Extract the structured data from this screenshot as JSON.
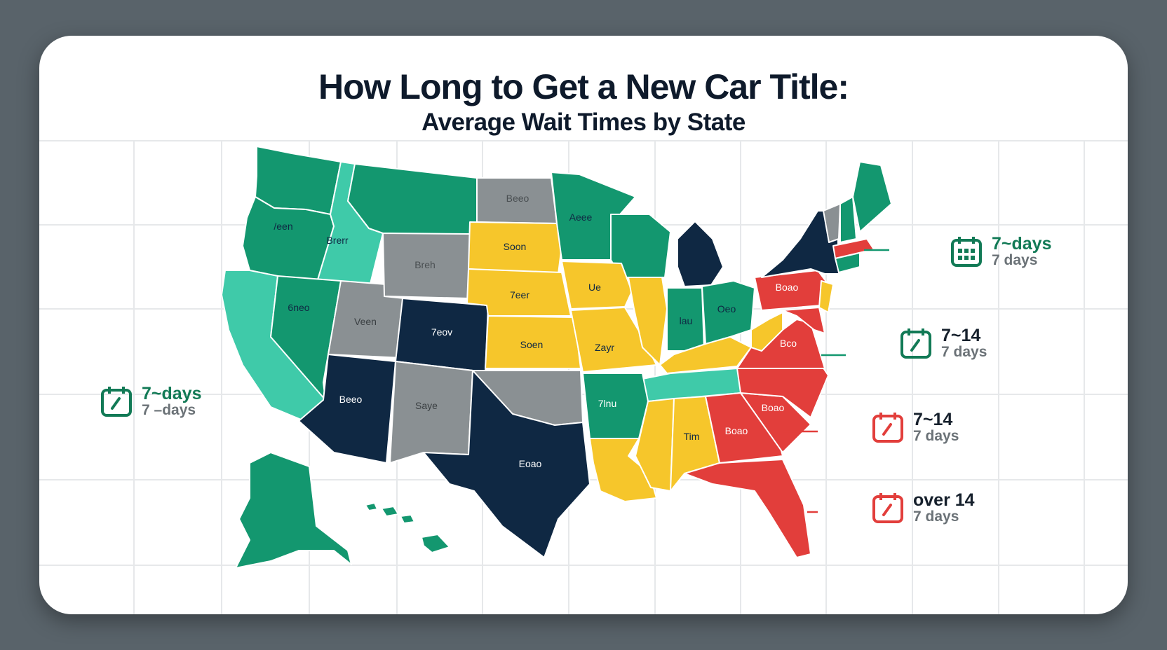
{
  "title": "How Long to Get a New Car Title:",
  "subtitle": "Average Wait Times by State",
  "colors": {
    "green": "#13976f",
    "teal": "#3fcaa9",
    "gray": "#8a9093",
    "yellow": "#f6c62b",
    "navy": "#0f2843",
    "red": "#e23e3b",
    "background": "#59636a"
  },
  "state_labels": {
    "wa_or": "/een",
    "id": "Brerr",
    "mt_nd": "Beeo",
    "mn": "Aeee",
    "nv": "6neo",
    "wy": "Breh",
    "sd": "Soon",
    "ne": "7eer",
    "ia": "Ue",
    "ut": "Veen",
    "co": "7eov",
    "ks": "Soen",
    "mo": "Zayr",
    "in": "lau",
    "oh": "Oeo",
    "pa": "Boao",
    "va": "Bco",
    "az": "Beeo",
    "nm": "Saye",
    "tx": "Eoao",
    "ar": "7lnu",
    "al": "Tim",
    "nc": "Boao",
    "ga": "Boao"
  },
  "legend": [
    {
      "id": "west",
      "range": "7~days",
      "days": "7 –days",
      "icon": "calendar-check-icon",
      "color": "#127a56"
    },
    {
      "id": "ne",
      "range": "7~days",
      "days": "7 days",
      "icon": "calendar-grid-icon",
      "color": "#127a56"
    },
    {
      "id": "mid1",
      "range": "7~14",
      "days": "7 days",
      "icon": "calendar-check-icon",
      "color": "#127a56"
    },
    {
      "id": "mid2",
      "range": "7~14",
      "days": "7 days",
      "icon": "calendar-check-icon",
      "color": "#e23e3b"
    },
    {
      "id": "over",
      "range": "over 14",
      "days": "7 days",
      "icon": "calendar-check-icon",
      "color": "#e23e3b"
    }
  ]
}
